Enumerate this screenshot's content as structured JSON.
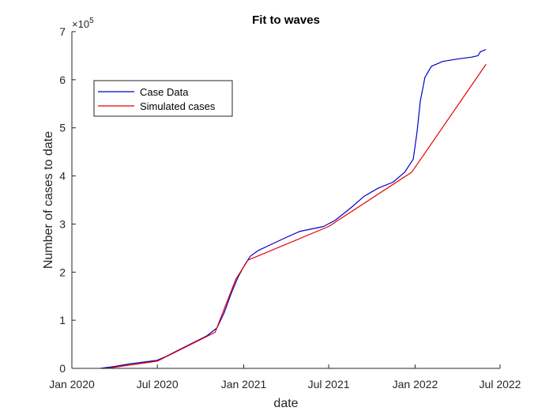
{
  "chart_data": {
    "type": "line",
    "title": "Fit to waves",
    "xlabel": "date",
    "ylabel": "Number of cases to date",
    "y_exponent_base": "×10",
    "y_exponent_power": "5",
    "xlim": [
      "2020-01-01",
      "2022-07-01"
    ],
    "ylim": [
      0,
      7
    ],
    "x_ticks": [
      {
        "date": "2020-01-01",
        "label": "Jan 2020"
      },
      {
        "date": "2020-07-01",
        "label": "Jul 2020"
      },
      {
        "date": "2021-01-01",
        "label": "Jan 2021"
      },
      {
        "date": "2021-07-01",
        "label": "Jul 2021"
      },
      {
        "date": "2022-01-01",
        "label": "Jan 2022"
      },
      {
        "date": "2022-07-01",
        "label": "Jul 2022"
      }
    ],
    "y_ticks": [
      0,
      1,
      2,
      3,
      4,
      5,
      6,
      7
    ],
    "grid": false,
    "legend_position": "top-left",
    "series": [
      {
        "name": "Case Data",
        "color": "#0000c8",
        "points": [
          [
            "2020-03-01",
            0.0
          ],
          [
            "2020-04-01",
            0.04
          ],
          [
            "2020-05-01",
            0.09
          ],
          [
            "2020-06-01",
            0.13
          ],
          [
            "2020-07-01",
            0.17
          ],
          [
            "2020-07-20",
            0.25
          ],
          [
            "2020-08-15",
            0.38
          ],
          [
            "2020-09-15",
            0.53
          ],
          [
            "2020-10-15",
            0.68
          ],
          [
            "2020-11-05",
            0.84
          ],
          [
            "2020-11-20",
            1.15
          ],
          [
            "2020-12-05",
            1.55
          ],
          [
            "2020-12-20",
            1.9
          ],
          [
            "2021-01-03",
            2.15
          ],
          [
            "2021-01-15",
            2.33
          ],
          [
            "2021-02-01",
            2.45
          ],
          [
            "2021-03-01",
            2.58
          ],
          [
            "2021-04-01",
            2.72
          ],
          [
            "2021-05-01",
            2.85
          ],
          [
            "2021-06-01",
            2.91
          ],
          [
            "2021-06-20",
            2.95
          ],
          [
            "2021-07-15",
            3.08
          ],
          [
            "2021-08-15",
            3.32
          ],
          [
            "2021-09-15",
            3.58
          ],
          [
            "2021-10-15",
            3.75
          ],
          [
            "2021-11-15",
            3.87
          ],
          [
            "2021-12-10",
            4.08
          ],
          [
            "2021-12-28",
            4.35
          ],
          [
            "2022-01-05",
            4.9
          ],
          [
            "2022-01-12",
            5.55
          ],
          [
            "2022-01-22",
            6.05
          ],
          [
            "2022-02-05",
            6.28
          ],
          [
            "2022-03-01",
            6.38
          ],
          [
            "2022-04-01",
            6.43
          ],
          [
            "2022-05-01",
            6.47
          ],
          [
            "2022-05-15",
            6.5
          ],
          [
            "2022-05-20",
            6.58
          ],
          [
            "2022-06-01",
            6.63
          ]
        ]
      },
      {
        "name": "Simulated cases",
        "color": "#e60000",
        "points": [
          [
            "2020-03-15",
            0.0
          ],
          [
            "2020-07-01",
            0.15
          ],
          [
            "2020-11-01",
            0.75
          ],
          [
            "2020-12-15",
            1.85
          ],
          [
            "2021-01-10",
            2.25
          ],
          [
            "2021-07-01",
            2.95
          ],
          [
            "2021-12-25",
            4.08
          ],
          [
            "2022-06-01",
            6.32
          ]
        ]
      }
    ]
  }
}
